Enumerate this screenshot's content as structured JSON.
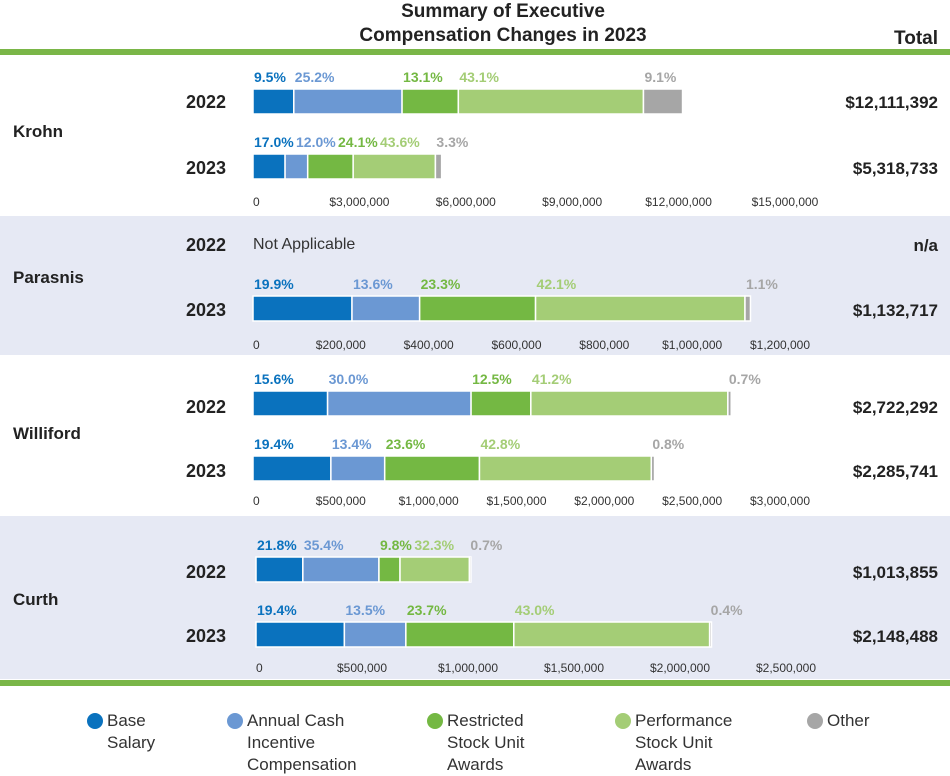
{
  "colors": {
    "base_salary": "#0a72be",
    "annual_cash_incentive": "#6b98d3",
    "restricted_stock_units": "#74b843",
    "performance_stock_units": "#a4cd76",
    "other": "#a6a6a6",
    "rule": "#7ab648",
    "band": "#e6e9f4"
  },
  "header": {
    "title_line1": "Summary of Executive",
    "title_line2": "Compensation Changes in 2023",
    "total_label": "Total"
  },
  "legend": [
    {
      "key": "base_salary",
      "line1": "Base",
      "line2": "Salary",
      "line3": ""
    },
    {
      "key": "annual_cash_incentive",
      "line1": "Annual Cash",
      "line2": "Incentive",
      "line3": "Compensation"
    },
    {
      "key": "restricted_stock_units",
      "line1": "Restricted",
      "line2": "Stock Unit",
      "line3": "Awards"
    },
    {
      "key": "performance_stock_units",
      "line1": "Performance",
      "line2": "Stock Unit",
      "line3": "Awards"
    },
    {
      "key": "other",
      "line1": "Other",
      "line2": "",
      "line3": ""
    }
  ],
  "chart_data": {
    "type": "bar",
    "stacked": true,
    "orientation": "horizontal",
    "title": "Summary of Executive Compensation Changes in 2023",
    "series_names": [
      "Base Salary",
      "Annual Cash Incentive Compensation",
      "Restricted Stock Unit Awards",
      "Performance Stock Unit Awards",
      "Other"
    ],
    "executives": [
      {
        "name": "Krohn",
        "axis_max": 15000000,
        "ticks": [
          "0",
          "$3,000,000",
          "$6,000,000",
          "$9,000,000",
          "$12,000,000",
          "$15,000,000"
        ],
        "rows": [
          {
            "year": "2022",
            "total": "$12,111,392",
            "value": 12111392,
            "applicable": true,
            "pcts": [
              9.5,
              25.2,
              13.1,
              43.1,
              9.1
            ],
            "labels": [
              "9.5%",
              "25.2%",
              "13.1%",
              "43.1%",
              "9.1%"
            ]
          },
          {
            "year": "2023",
            "total": "$5,318,733",
            "value": 5318733,
            "applicable": true,
            "pcts": [
              17.0,
              12.0,
              24.1,
              43.6,
              3.3
            ],
            "labels": [
              "17.0%",
              "12.0%",
              "24.1%",
              "43.6%",
              "3.3%"
            ]
          }
        ]
      },
      {
        "name": "Parasnis",
        "axis_max": 1200000,
        "ticks": [
          "0",
          "$200,000",
          "$400,000",
          "$600,000",
          "$800,000",
          "$1,000,000",
          "$1,200,000"
        ],
        "rows": [
          {
            "year": "2022",
            "total": "n/a",
            "applicable": false,
            "note": "Not Applicable"
          },
          {
            "year": "2023",
            "total": "$1,132,717",
            "value": 1132717,
            "applicable": true,
            "pcts": [
              19.9,
              13.6,
              23.3,
              42.1,
              1.1
            ],
            "labels": [
              "19.9%",
              "13.6%",
              "23.3%",
              "42.1%",
              "1.1%"
            ]
          }
        ]
      },
      {
        "name": "Williford",
        "axis_max": 3000000,
        "ticks": [
          "0",
          "$500,000",
          "$1,000,000",
          "$1,500,000",
          "$2,000,000",
          "$2,500,000",
          "$3,000,000"
        ],
        "rows": [
          {
            "year": "2022",
            "total": "$2,722,292",
            "value": 2722292,
            "applicable": true,
            "pcts": [
              15.6,
              30.0,
              12.5,
              41.2,
              0.7
            ],
            "labels": [
              "15.6%",
              "30.0%",
              "12.5%",
              "41.2%",
              "0.7%"
            ]
          },
          {
            "year": "2023",
            "total": "$2,285,741",
            "value": 2285741,
            "applicable": true,
            "pcts": [
              19.4,
              13.4,
              23.6,
              42.8,
              0.8
            ],
            "labels": [
              "19.4%",
              "13.4%",
              "23.6%",
              "42.8%",
              "0.8%"
            ]
          }
        ]
      },
      {
        "name": "Curth",
        "axis_max": 2500000,
        "ticks": [
          "0",
          "$500,000",
          "$1,000,000",
          "$1,500,000",
          "$2,000,000",
          "$2,500,000"
        ],
        "rows": [
          {
            "year": "2022",
            "total": "$1,013,855",
            "value": 1013855,
            "applicable": true,
            "pcts": [
              21.8,
              35.4,
              9.8,
              32.3,
              0.7
            ],
            "labels": [
              "21.8%",
              "35.4%",
              "9.8%",
              "32.3%",
              "0.7%"
            ]
          },
          {
            "year": "2023",
            "total": "$2,148,488",
            "value": 2148488,
            "applicable": true,
            "pcts": [
              19.4,
              13.5,
              23.7,
              43.0,
              0.4
            ],
            "labels": [
              "19.4%",
              "13.5%",
              "23.7%",
              "43.0%",
              "0.4%"
            ]
          }
        ]
      }
    ]
  }
}
